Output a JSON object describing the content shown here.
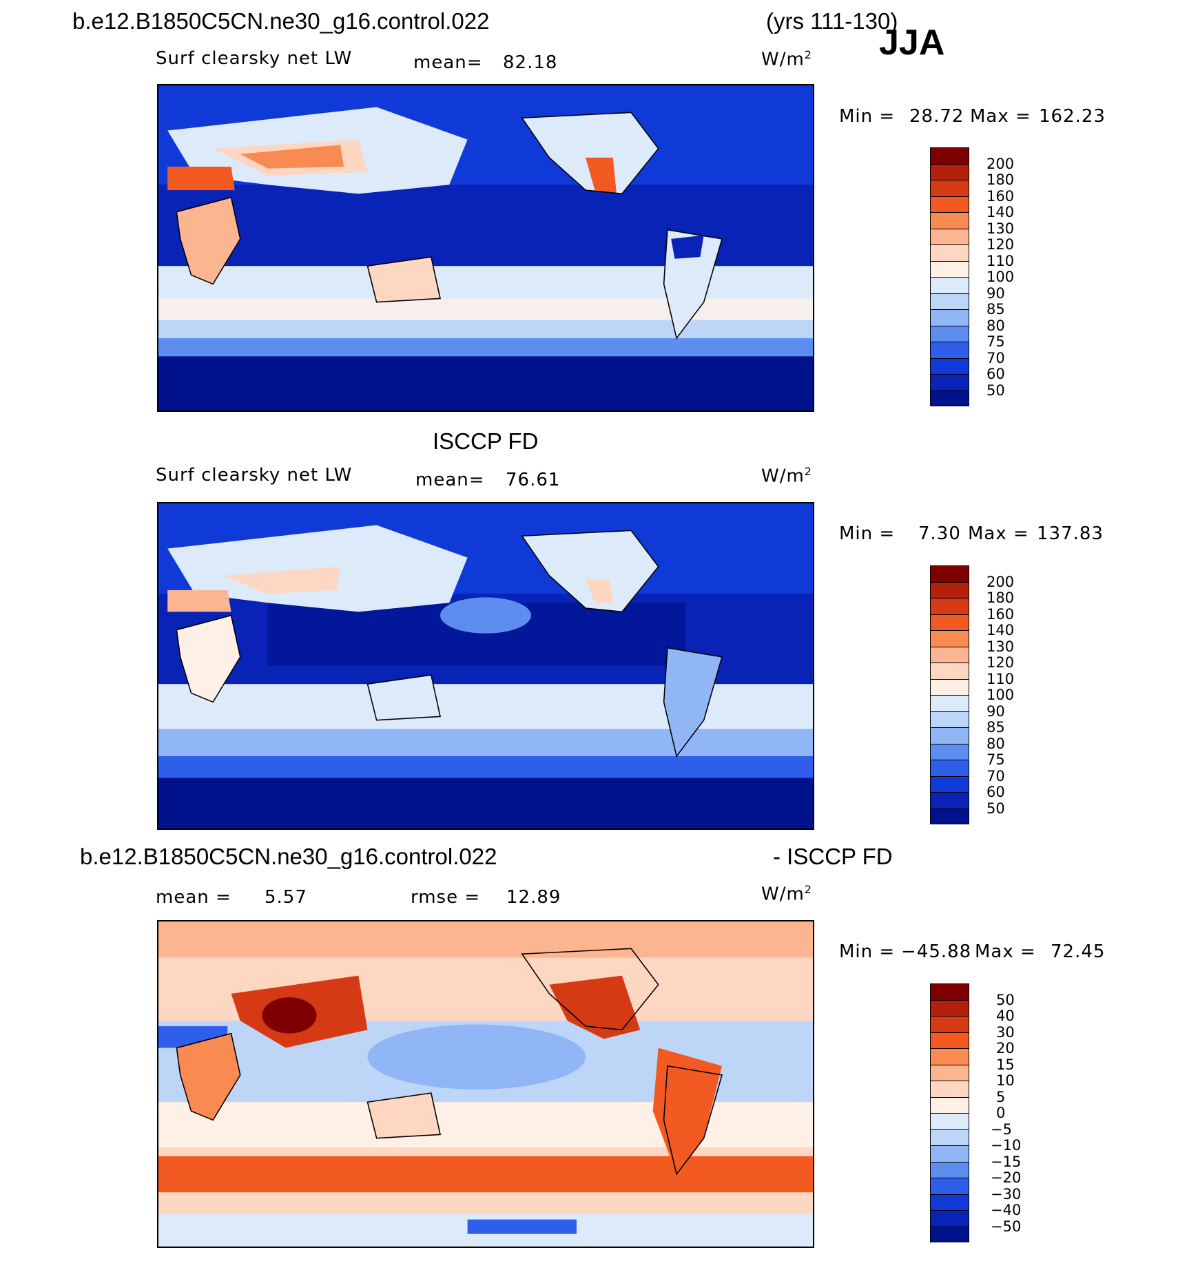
{
  "header": {
    "case_name": "b.e12.B1850C5CN.ne30_g16.control.022",
    "years": "(yrs 111-130)",
    "season": "JJA"
  },
  "panels": [
    {
      "id": "model",
      "subtitle": "",
      "variable": "Surf clearsky net LW",
      "mean_label": "mean=",
      "mean_value": "82.18",
      "units": "W/m",
      "units_sup": "2",
      "min_label": "Min =",
      "min_value": "28.72",
      "max_label": "Max =",
      "max_value": "162.23",
      "colorbar": {
        "labels": [
          "200",
          "180",
          "160",
          "140",
          "130",
          "120",
          "110",
          "100",
          "90",
          "85",
          "80",
          "75",
          "70",
          "60",
          "50"
        ],
        "colors": [
          "#7f0000",
          "#b3200b",
          "#d63a14",
          "#f25a22",
          "#f98a51",
          "#fcb591",
          "#fdd7c2",
          "#fdf0e7",
          "#dceafa",
          "#bdd6f8",
          "#91b6f5",
          "#5e8df0",
          "#2e5eea",
          "#0f3ad8",
          "#0923b7",
          "#00128c"
        ]
      }
    },
    {
      "id": "obs",
      "subtitle": "ISCCP FD",
      "variable": "Surf clearsky net LW",
      "mean_label": "mean=",
      "mean_value": "76.61",
      "units": "W/m",
      "units_sup": "2",
      "min_label": "Min =",
      "min_value": "7.30",
      "max_label": "Max =",
      "max_value": "137.83",
      "colorbar": {
        "labels": [
          "200",
          "180",
          "160",
          "140",
          "130",
          "120",
          "110",
          "100",
          "90",
          "85",
          "80",
          "75",
          "70",
          "60",
          "50"
        ],
        "colors": [
          "#7f0000",
          "#b3200b",
          "#d63a14",
          "#f25a22",
          "#f98a51",
          "#fcb591",
          "#fdd7c2",
          "#fdf0e7",
          "#dceafa",
          "#bdd6f8",
          "#91b6f5",
          "#5e8df0",
          "#2e5eea",
          "#0f3ad8",
          "#0923b7",
          "#00128c"
        ]
      }
    },
    {
      "id": "diff",
      "title_left": "b.e12.B1850C5CN.ne30_g16.control.022",
      "title_right": "- ISCCP FD",
      "mean_label": "mean =",
      "mean_value": "5.57",
      "rmse_label": "rmse =",
      "rmse_value": "12.89",
      "units": "W/m",
      "units_sup": "2",
      "min_label": "Min =",
      "min_value": "−45.88",
      "max_label": "Max =",
      "max_value": "72.45",
      "colorbar": {
        "labels": [
          "50",
          "40",
          "30",
          "20",
          "15",
          "10",
          "5",
          "0",
          "−5",
          "−10",
          "−15",
          "−20",
          "−30",
          "−40",
          "−50"
        ],
        "colors": [
          "#7f0000",
          "#b3200b",
          "#d63a14",
          "#f25a22",
          "#f98a51",
          "#fcb591",
          "#fdd7c2",
          "#fdf0e7",
          "#dceafa",
          "#bdd6f8",
          "#91b6f5",
          "#5e8df0",
          "#2e5eea",
          "#0f3ad8",
          "#0923b7",
          "#00128c"
        ]
      }
    }
  ]
}
